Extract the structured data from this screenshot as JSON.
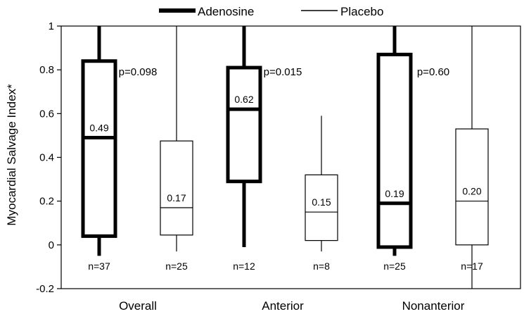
{
  "chart_data": {
    "type": "box",
    "ylabel": "Myocardial Salvage Index*",
    "ylim": [
      -0.2,
      1.0
    ],
    "y_ticks": [
      -0.2,
      0,
      0.2,
      0.4,
      0.6,
      0.8,
      1
    ],
    "y_tick_labels": [
      "-0.2",
      "0",
      "0.2",
      "0.4",
      "0.6",
      "0.8",
      "1"
    ],
    "grid": false,
    "legend_position": "top-center",
    "series": [
      {
        "name": "Adenosine",
        "style": "thick"
      },
      {
        "name": "Placebo",
        "style": "thin"
      }
    ],
    "groups": [
      {
        "label": "Overall",
        "p_value": "p=0.098",
        "boxes": [
          {
            "series": "Adenosine",
            "whisker_low": -0.05,
            "q1": 0.04,
            "median": 0.49,
            "q3": 0.84,
            "whisker_high": 1.0,
            "median_label": "0.49",
            "n_label": "n=37"
          },
          {
            "series": "Placebo",
            "whisker_low": -0.03,
            "q1": 0.045,
            "median": 0.17,
            "q3": 0.475,
            "whisker_high": 1.0,
            "median_label": "0.17",
            "n_label": "n=25"
          }
        ]
      },
      {
        "label": "Anterior",
        "p_value": "p=0.015",
        "boxes": [
          {
            "series": "Adenosine",
            "whisker_low": -0.01,
            "q1": 0.29,
            "median": 0.62,
            "q3": 0.81,
            "whisker_high": 1.0,
            "median_label": "0.62",
            "n_label": "n=12"
          },
          {
            "series": "Placebo",
            "whisker_low": -0.03,
            "q1": 0.02,
            "median": 0.15,
            "q3": 0.32,
            "whisker_high": 0.59,
            "median_label": "0.15",
            "n_label": "n=8"
          }
        ]
      },
      {
        "label": "Nonanterior",
        "p_value": "p=0.60",
        "boxes": [
          {
            "series": "Adenosine",
            "whisker_low": -0.05,
            "q1": -0.01,
            "median": 0.19,
            "q3": 0.87,
            "whisker_high": 1.0,
            "median_label": "0.19",
            "n_label": "n=25"
          },
          {
            "series": "Placebo",
            "whisker_low": -0.2,
            "q1": 0.0,
            "median": 0.2,
            "q3": 0.53,
            "whisker_high": 1.0,
            "median_label": "0.20",
            "n_label": "n=17"
          }
        ]
      }
    ]
  }
}
